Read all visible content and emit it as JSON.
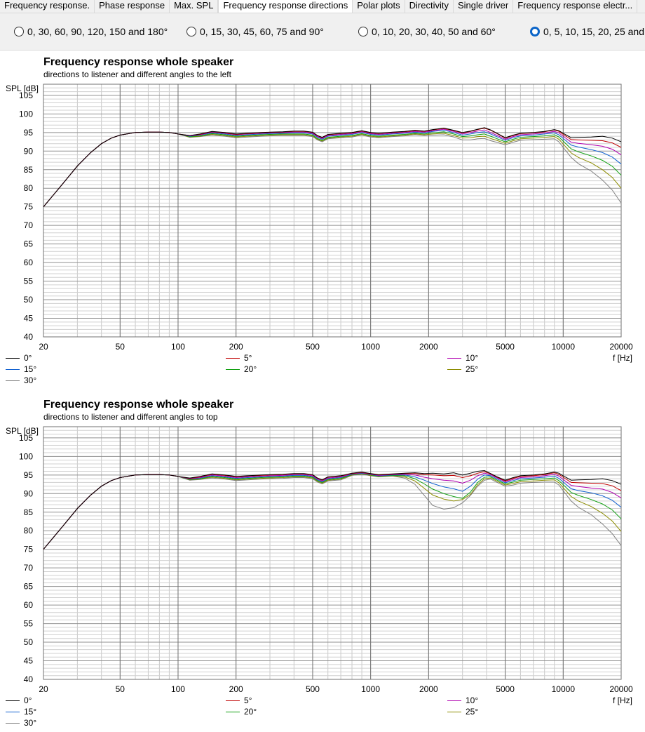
{
  "tabs": [
    {
      "label": "Frequency response."
    },
    {
      "label": "Phase response"
    },
    {
      "label": "Max. SPL"
    },
    {
      "label": "Frequency response directions",
      "active": true
    },
    {
      "label": "Polar plots"
    },
    {
      "label": "Directivity"
    },
    {
      "label": "Single driver"
    },
    {
      "label": "Frequency response electr..."
    }
  ],
  "options": [
    {
      "label": "0, 30, 60, 90, 120, 150 and 180°",
      "selected": false
    },
    {
      "label": "0, 15, 30, 45, 60, 75 and 90°",
      "selected": false
    },
    {
      "label": "0, 10, 20, 30, 40, 50 and 60°",
      "selected": false
    },
    {
      "label": "0, 5, 10, 15, 20, 25 and",
      "selected": true
    }
  ],
  "colors": {
    "0°": "#000000",
    "5°": "#c00000",
    "10°": "#b000b0",
    "15°": "#1060d0",
    "20°": "#10a010",
    "25°": "#8c8c00",
    "30°": "#808080"
  },
  "chart_data": [
    {
      "type": "line",
      "title": "Frequency response whole speaker",
      "subtitle": "directions to listener and different angles to the left",
      "ylabel": "SPL [dB]",
      "xlabel": "f [Hz]",
      "xscale": "log",
      "xlim": [
        20,
        20000
      ],
      "ylim": [
        40,
        108
      ],
      "yticks": [
        40,
        45,
        50,
        55,
        60,
        65,
        70,
        75,
        80,
        85,
        90,
        95,
        100,
        105
      ],
      "xticks": [
        20,
        50,
        100,
        200,
        500,
        1000,
        2000,
        5000,
        10000,
        20000
      ],
      "grid": true,
      "legend": "bottom",
      "x": [
        20,
        25,
        30,
        35,
        40,
        45,
        50,
        60,
        70,
        80,
        90,
        100,
        115,
        130,
        150,
        175,
        200,
        230,
        270,
        300,
        350,
        400,
        450,
        500,
        530,
        560,
        600,
        700,
        800,
        900,
        1000,
        1100,
        1300,
        1500,
        1700,
        1900,
        2100,
        2400,
        2700,
        3000,
        3300,
        3600,
        3900,
        4200,
        4500,
        5000,
        5500,
        6000,
        7000,
        8000,
        9000,
        9500,
        10000,
        11000,
        12000,
        14000,
        16000,
        18000,
        20000
      ],
      "series": [
        {
          "name": "0°",
          "values": [
            75,
            81,
            86,
            89.5,
            92,
            93.5,
            94.3,
            95,
            95.1,
            95.1,
            95,
            94.6,
            94.2,
            94.6,
            95.3,
            95.0,
            94.6,
            94.8,
            95.0,
            95.1,
            95.2,
            95.4,
            95.4,
            95.1,
            94.2,
            93.7,
            94.5,
            94.8,
            95.0,
            95.5,
            95.0,
            94.8,
            95.1,
            95.3,
            95.6,
            95.4,
            95.8,
            96.2,
            95.6,
            95.0,
            95.4,
            95.9,
            96.3,
            95.7,
            94.9,
            93.6,
            94.3,
            94.8,
            95.0,
            95.3,
            95.8,
            95.5,
            94.8,
            93.6,
            93.7,
            93.8,
            94.0,
            93.5,
            92.5
          ]
        },
        {
          "name": "5°",
          "values": [
            75,
            81,
            86,
            89.5,
            92,
            93.5,
            94.3,
            95,
            95.1,
            95.1,
            95,
            94.6,
            94.2,
            94.5,
            95.2,
            94.9,
            94.5,
            94.7,
            94.9,
            95.0,
            95.1,
            95.3,
            95.3,
            95.0,
            94.1,
            93.6,
            94.4,
            94.7,
            94.9,
            95.4,
            94.9,
            94.7,
            95.0,
            95.2,
            95.5,
            95.3,
            95.7,
            96.1,
            95.5,
            94.9,
            95.3,
            95.8,
            96.2,
            95.6,
            94.8,
            93.5,
            94.2,
            94.7,
            94.9,
            95.2,
            95.7,
            95.3,
            94.5,
            93.1,
            93.0,
            92.9,
            92.8,
            92.2,
            91.0
          ]
        },
        {
          "name": "10°",
          "values": [
            75,
            81,
            86,
            89.5,
            92,
            93.5,
            94.3,
            95,
            95.1,
            95.1,
            95,
            94.6,
            94.1,
            94.4,
            95.1,
            94.8,
            94.4,
            94.6,
            94.8,
            94.9,
            95.0,
            95.1,
            95.1,
            94.8,
            93.9,
            93.4,
            94.2,
            94.5,
            94.7,
            95.2,
            94.7,
            94.5,
            94.8,
            95.0,
            95.3,
            95.1,
            95.5,
            95.9,
            95.3,
            94.6,
            95.0,
            95.4,
            95.7,
            95.0,
            94.3,
            93.2,
            93.9,
            94.4,
            94.6,
            94.9,
            95.3,
            94.9,
            94.0,
            92.4,
            92.1,
            91.7,
            91.3,
            90.5,
            89.0
          ]
        },
        {
          "name": "15°",
          "values": [
            75,
            81,
            86,
            89.5,
            92,
            93.5,
            94.3,
            95,
            95.1,
            95.1,
            95,
            94.6,
            94.0,
            94.3,
            94.9,
            94.6,
            94.2,
            94.4,
            94.6,
            94.7,
            94.8,
            94.9,
            94.9,
            94.6,
            93.7,
            93.2,
            94.0,
            94.3,
            94.5,
            95.0,
            94.5,
            94.3,
            94.6,
            94.8,
            95.1,
            94.9,
            95.3,
            95.6,
            95.0,
            94.3,
            94.6,
            95.0,
            95.2,
            94.6,
            93.9,
            92.9,
            93.6,
            94.1,
            94.3,
            94.6,
            94.9,
            94.4,
            93.4,
            91.6,
            91.1,
            90.4,
            89.6,
            88.4,
            86.5
          ]
        },
        {
          "name": "20°",
          "values": [
            75,
            81,
            86,
            89.5,
            92,
            93.5,
            94.3,
            95,
            95.1,
            95.1,
            95,
            94.6,
            93.9,
            94.1,
            94.7,
            94.4,
            94.0,
            94.2,
            94.4,
            94.5,
            94.6,
            94.6,
            94.6,
            94.3,
            93.4,
            92.9,
            93.7,
            94.0,
            94.2,
            94.7,
            94.2,
            94.0,
            94.3,
            94.5,
            94.8,
            94.6,
            94.9,
            95.2,
            94.6,
            93.9,
            94.1,
            94.4,
            94.6,
            94.0,
            93.4,
            92.5,
            93.2,
            93.7,
            93.9,
            94.1,
            94.4,
            93.8,
            92.7,
            90.6,
            89.8,
            88.7,
            87.5,
            85.9,
            83.5
          ]
        },
        {
          "name": "25°",
          "values": [
            75,
            81,
            86,
            89.5,
            92,
            93.5,
            94.3,
            95,
            95.1,
            95.1,
            95,
            94.6,
            93.8,
            94.0,
            94.5,
            94.2,
            93.8,
            94.0,
            94.2,
            94.3,
            94.4,
            94.4,
            94.4,
            94.1,
            93.2,
            92.7,
            93.5,
            93.8,
            94.0,
            94.5,
            94.0,
            93.8,
            94.1,
            94.3,
            94.6,
            94.4,
            94.6,
            94.8,
            94.2,
            93.5,
            93.6,
            93.9,
            94.0,
            93.4,
            92.9,
            92.1,
            92.8,
            93.3,
            93.5,
            93.7,
            93.9,
            93.2,
            91.9,
            89.5,
            88.3,
            86.8,
            85.0,
            82.9,
            80.0
          ]
        },
        {
          "name": "30°",
          "values": [
            75,
            81,
            86,
            89.5,
            92,
            93.5,
            94.3,
            95,
            95.1,
            95.1,
            95,
            94.6,
            93.7,
            93.9,
            94.3,
            94.0,
            93.6,
            93.8,
            94.0,
            94.1,
            94.2,
            94.2,
            94.2,
            93.9,
            93.0,
            92.5,
            93.3,
            93.6,
            93.8,
            94.3,
            93.8,
            93.6,
            93.9,
            94.1,
            94.4,
            94.2,
            94.3,
            94.4,
            93.8,
            93.0,
            93.0,
            93.3,
            93.4,
            92.8,
            92.4,
            91.7,
            92.4,
            92.9,
            93.1,
            93.2,
            93.3,
            92.5,
            91.0,
            88.3,
            86.6,
            84.6,
            82.2,
            79.5,
            76.0
          ]
        }
      ]
    },
    {
      "type": "line",
      "title": "Frequency response whole speaker",
      "subtitle": "directions to listener and different angles to top",
      "ylabel": "SPL [dB]",
      "xlabel": "f [Hz]",
      "xscale": "log",
      "xlim": [
        20,
        20000
      ],
      "ylim": [
        40,
        108
      ],
      "yticks": [
        40,
        45,
        50,
        55,
        60,
        65,
        70,
        75,
        80,
        85,
        90,
        95,
        100,
        105
      ],
      "xticks": [
        20,
        50,
        100,
        200,
        500,
        1000,
        2000,
        5000,
        10000,
        20000
      ],
      "grid": true,
      "legend": "bottom",
      "x": [
        20,
        25,
        30,
        35,
        40,
        45,
        50,
        60,
        70,
        80,
        90,
        100,
        115,
        130,
        150,
        175,
        200,
        230,
        270,
        300,
        350,
        400,
        450,
        500,
        530,
        560,
        600,
        700,
        800,
        900,
        1000,
        1100,
        1300,
        1500,
        1700,
        1900,
        2100,
        2400,
        2700,
        3000,
        3300,
        3600,
        3900,
        4200,
        4500,
        5000,
        5500,
        6000,
        7000,
        8000,
        9000,
        9500,
        10000,
        11000,
        12000,
        14000,
        16000,
        18000,
        20000
      ],
      "series": [
        {
          "name": "0°",
          "values": [
            75,
            81,
            86,
            89.5,
            92,
            93.5,
            94.3,
            95,
            95.1,
            95.1,
            95,
            94.6,
            94.2,
            94.6,
            95.3,
            95.0,
            94.6,
            94.8,
            95.0,
            95.1,
            95.2,
            95.4,
            95.4,
            95.1,
            94.2,
            93.7,
            94.5,
            94.8,
            95.5,
            95.8,
            95.4,
            95.1,
            95.3,
            95.5,
            95.6,
            95.4,
            95.5,
            95.3,
            95.6,
            95.0,
            95.5,
            96.0,
            96.2,
            95.4,
            94.6,
            93.6,
            94.3,
            94.8,
            95.0,
            95.3,
            95.8,
            95.5,
            94.8,
            93.6,
            93.7,
            93.8,
            94.0,
            93.5,
            92.5
          ]
        },
        {
          "name": "5°",
          "values": [
            75,
            81,
            86,
            89.5,
            92,
            93.5,
            94.3,
            95,
            95.1,
            95.1,
            95,
            94.6,
            94.1,
            94.5,
            95.2,
            94.9,
            94.5,
            94.7,
            94.9,
            95.0,
            95.1,
            95.3,
            95.3,
            95.0,
            94.1,
            93.6,
            94.4,
            94.7,
            95.4,
            95.7,
            95.3,
            95.0,
            95.2,
            95.4,
            95.4,
            95.1,
            95.0,
            94.8,
            94.9,
            94.3,
            94.8,
            95.5,
            95.9,
            95.3,
            94.5,
            93.4,
            94.1,
            94.6,
            94.8,
            95.1,
            95.6,
            95.2,
            94.4,
            93.0,
            92.9,
            92.8,
            92.7,
            92.1,
            90.8
          ]
        },
        {
          "name": "10°",
          "values": [
            75,
            81,
            86,
            89.5,
            92,
            93.5,
            94.3,
            95,
            95.1,
            95.1,
            95,
            94.6,
            94.0,
            94.3,
            95.0,
            94.7,
            94.3,
            94.5,
            94.7,
            94.8,
            94.9,
            95.1,
            95.1,
            94.8,
            93.9,
            93.4,
            94.2,
            94.5,
            95.3,
            95.6,
            95.2,
            94.9,
            95.1,
            95.2,
            95.0,
            94.4,
            94.0,
            93.6,
            93.4,
            92.8,
            93.6,
            94.8,
            95.5,
            95.1,
            94.3,
            93.2,
            93.8,
            94.3,
            94.5,
            94.8,
            95.2,
            94.7,
            93.8,
            92.2,
            91.9,
            91.5,
            91.2,
            90.3,
            88.8
          ]
        },
        {
          "name": "15°",
          "values": [
            75,
            81,
            86,
            89.5,
            92,
            93.5,
            94.3,
            95,
            95.1,
            95.1,
            95,
            94.6,
            93.9,
            94.2,
            94.8,
            94.5,
            94.1,
            94.3,
            94.5,
            94.6,
            94.7,
            94.9,
            94.9,
            94.6,
            93.7,
            93.2,
            94.0,
            94.3,
            95.2,
            95.5,
            95.1,
            94.8,
            95.0,
            95.0,
            94.5,
            93.6,
            92.7,
            91.8,
            91.3,
            90.6,
            92.0,
            93.9,
            95.0,
            94.8,
            94.0,
            92.9,
            93.5,
            94.0,
            94.2,
            94.4,
            94.7,
            94.1,
            93.1,
            91.3,
            90.8,
            90.2,
            89.4,
            88.2,
            86.3
          ]
        },
        {
          "name": "20°",
          "values": [
            75,
            81,
            86,
            89.5,
            92,
            93.5,
            94.3,
            95,
            95.1,
            95.1,
            95,
            94.6,
            93.8,
            94.0,
            94.6,
            94.3,
            93.9,
            94.1,
            94.3,
            94.4,
            94.5,
            94.7,
            94.7,
            94.4,
            93.5,
            93.0,
            93.8,
            94.1,
            95.1,
            95.4,
            95.0,
            94.7,
            94.9,
            94.8,
            94.0,
            92.6,
            91.2,
            90.0,
            89.2,
            88.7,
            90.4,
            93.0,
            94.4,
            94.5,
            93.7,
            92.6,
            93.1,
            93.6,
            93.8,
            94.0,
            94.2,
            93.5,
            92.4,
            90.3,
            89.5,
            88.4,
            87.2,
            85.6,
            83.2
          ]
        },
        {
          "name": "25°",
          "values": [
            75,
            81,
            86,
            89.5,
            92,
            93.5,
            94.3,
            95,
            95.1,
            95.1,
            95,
            94.6,
            93.7,
            93.9,
            94.4,
            94.1,
            93.7,
            93.9,
            94.1,
            94.2,
            94.3,
            94.5,
            94.5,
            94.2,
            93.3,
            92.8,
            93.6,
            93.9,
            95.0,
            95.3,
            94.9,
            94.6,
            94.8,
            94.5,
            93.4,
            91.4,
            89.6,
            88.5,
            88.0,
            88.4,
            89.8,
            92.4,
            94.0,
            94.2,
            93.4,
            92.3,
            92.7,
            93.2,
            93.4,
            93.6,
            93.7,
            92.9,
            91.6,
            89.2,
            88.0,
            86.5,
            84.7,
            82.6,
            79.8
          ]
        },
        {
          "name": "30°",
          "values": [
            75,
            81,
            86,
            89.5,
            92,
            93.5,
            94.3,
            95,
            95.1,
            95.1,
            95,
            94.6,
            93.6,
            93.8,
            94.2,
            93.9,
            93.5,
            93.7,
            93.9,
            94.0,
            94.1,
            94.3,
            94.3,
            94.0,
            93.1,
            92.6,
            93.4,
            93.7,
            94.9,
            95.2,
            94.8,
            94.5,
            94.7,
            94.2,
            92.5,
            89.5,
            86.8,
            85.8,
            86.2,
            87.5,
            89.5,
            92.0,
            93.6,
            93.9,
            93.1,
            92.0,
            92.3,
            92.8,
            93.0,
            93.1,
            93.1,
            92.3,
            90.8,
            88.0,
            86.3,
            84.3,
            81.8,
            79.2,
            76.0
          ]
        }
      ]
    }
  ]
}
